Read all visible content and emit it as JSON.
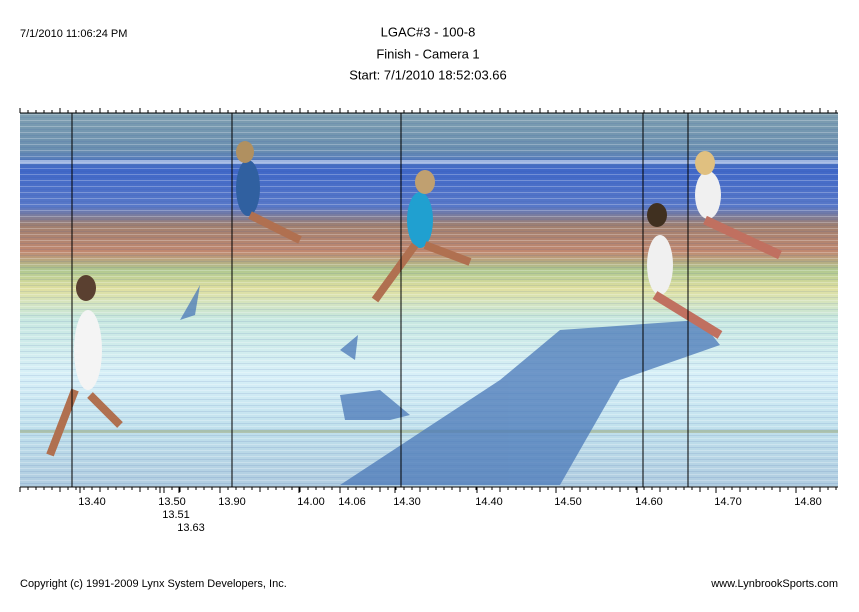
{
  "timestamp": "7/1/2010 11:06:24 PM",
  "header": {
    "title": "LGAC#3 - 100-8",
    "subtitle": "Finish - Camera 1",
    "start": "Start: 7/1/2010 18:52:03.66"
  },
  "time_labels": [
    "13.40",
    "13.50",
    "13.51",
    "13.63",
    "13.90",
    "14.00",
    "14.06",
    "14.30",
    "14.40",
    "14.50",
    "14.60",
    "14.70",
    "14.80"
  ],
  "footer": {
    "copyright": "Copyright (c) 1991-2009 Lynx System Developers, Inc.",
    "site": "www.LynbrookSports.com"
  }
}
